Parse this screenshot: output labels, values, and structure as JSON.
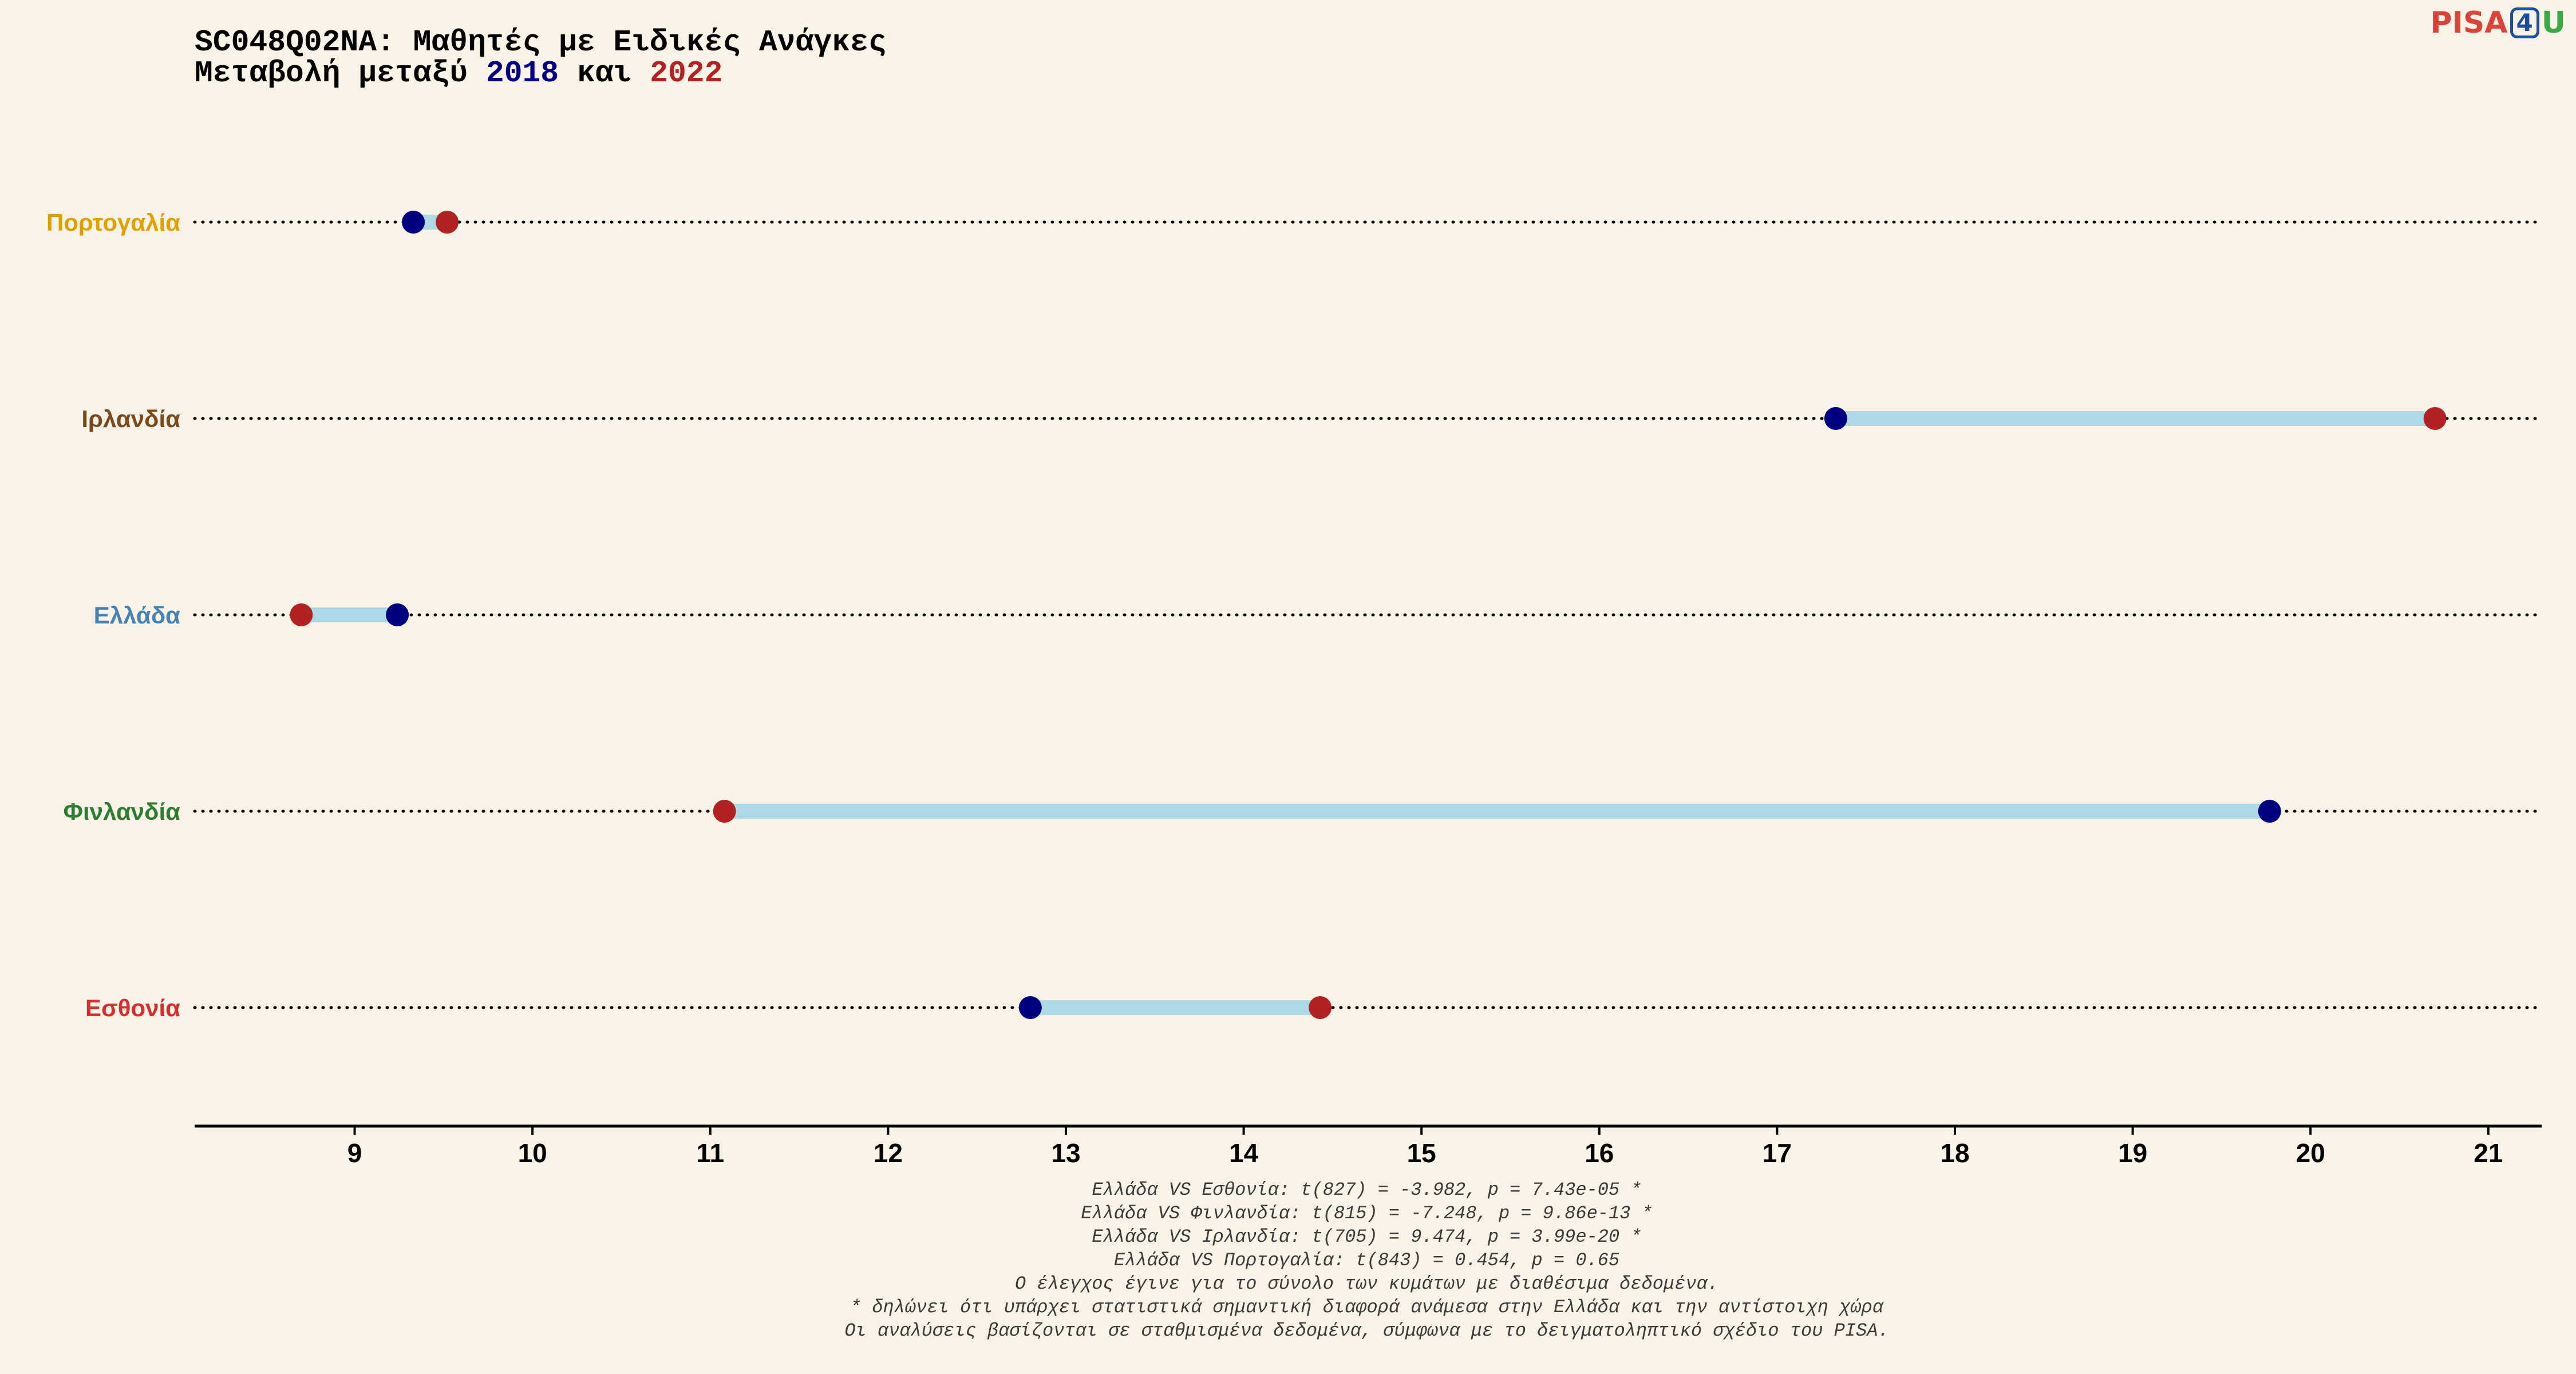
{
  "title": {
    "line1": "SC048Q02NA: Μαθητές με Ειδικές Ανάγκες",
    "line2_prefix": "Μεταβολή μεταξύ ",
    "year1": "2018",
    "line2_mid": " και ",
    "year2": "2022"
  },
  "logo": {
    "part1": "PISA",
    "part2": "4",
    "part3": "U"
  },
  "colors": {
    "year1": "#000080",
    "year2": "#b22222",
    "bar": "#add8e6",
    "background": "#f8f3e6"
  },
  "chart_data": {
    "type": "dumbbell",
    "xlim": [
      8.1,
      21.3
    ],
    "xticks": [
      9,
      10,
      11,
      12,
      13,
      14,
      15,
      16,
      17,
      18,
      19,
      20,
      21
    ],
    "grid": "dotted horizontal guides per country",
    "legend": "none (years encoded in title colors)",
    "series": [
      {
        "name": "2018",
        "color": "#000080"
      },
      {
        "name": "2022",
        "color": "#b22222"
      }
    ],
    "countries": [
      {
        "name": "Πορτογαλία",
        "label_color": "#e0a000",
        "v2018": 9.33,
        "v2022": 9.52
      },
      {
        "name": "Ιρλανδία",
        "label_color": "#7a4a1f",
        "v2018": 17.33,
        "v2022": 20.7
      },
      {
        "name": "Ελλάδα",
        "label_color": "#4682b4",
        "v2018": 9.24,
        "v2022": 8.7
      },
      {
        "name": "Φινλανδία",
        "label_color": "#2e7d32",
        "v2018": 19.77,
        "v2022": 11.08
      },
      {
        "name": "Εσθονία",
        "label_color": "#d32f2f",
        "v2018": 12.8,
        "v2022": 14.43
      }
    ]
  },
  "notes": [
    "Ελλάδα VS Εσθονία: t(827) = -3.982, p = 7.43e-05 *",
    "Ελλάδα VS Φινλανδία: t(815) = -7.248, p = 9.86e-13 *",
    "Ελλάδα VS Ιρλανδία: t(705) = 9.474, p = 3.99e-20 *",
    "Ελλάδα VS Πορτογαλία: t(843) = 0.454, p = 0.65",
    "Ο έλεγχος έγινε για το σύνολο των κυμάτων με διαθέσιμα δεδομένα.",
    "* δηλώνει ότι υπάρχει στατιστικά σημαντική διαφορά ανάμεσα στην Ελλάδα και την αντίστοιχη χώρα",
    "Οι αναλύσεις βασίζονται σε σταθμισμένα δεδομένα, σύμφωνα με το δειγματοληπτικό σχέδιο του PISA."
  ]
}
